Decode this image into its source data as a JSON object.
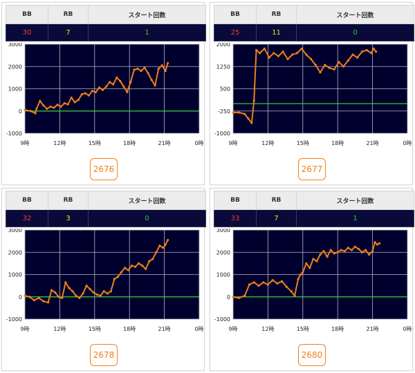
{
  "headers": {
    "bb": "BB",
    "rb": "RB",
    "start": "スタート回数"
  },
  "colors": {
    "bb": "#ff3333",
    "rb": "#e8e800",
    "start": "#33cc33",
    "plot_bg": "#00002e",
    "line": "#f07f1a",
    "zero": "#33cc33",
    "button": "#f07f1a"
  },
  "x_ticks": [
    "9時",
    "12時",
    "15時",
    "18時",
    "21時",
    "0時"
  ],
  "cards": [
    {
      "bb": "30",
      "rb": "7",
      "start": "1",
      "machine": "2676",
      "chart_data": {
        "type": "line",
        "xlim": [
          9,
          24
        ],
        "ylim": [
          -1000,
          3000
        ],
        "y_ticks": [
          "3000",
          "2000",
          "1000",
          "0",
          "-1000"
        ],
        "y_tick_values": [
          3000,
          2000,
          1000,
          0,
          -1000
        ],
        "x": [
          9.0,
          9.5,
          9.9,
          10.0,
          10.3,
          10.6,
          10.9,
          11.2,
          11.5,
          11.8,
          12.1,
          12.4,
          12.7,
          13.0,
          13.3,
          13.6,
          13.9,
          14.2,
          14.5,
          14.8,
          15.1,
          15.4,
          15.7,
          16.0,
          16.3,
          16.6,
          16.9,
          17.2,
          17.5,
          17.8,
          18.1,
          18.4,
          18.7,
          19.0,
          19.3,
          19.6,
          19.9,
          20.2,
          20.5,
          20.8,
          21.1,
          21.3
        ],
        "y": [
          50,
          0,
          -100,
          100,
          450,
          250,
          100,
          200,
          150,
          280,
          200,
          350,
          300,
          600,
          400,
          500,
          750,
          800,
          700,
          900,
          850,
          1050,
          950,
          1100,
          1300,
          1200,
          1500,
          1350,
          1100,
          850,
          1300,
          1850,
          1900,
          1800,
          1950,
          1700,
          1400,
          1150,
          1900,
          2050,
          1800,
          2150
        ]
      }
    },
    {
      "bb": "25",
      "rb": "11",
      "start": "0",
      "machine": "2677",
      "chart_data": {
        "type": "line",
        "xlim": [
          9,
          24
        ],
        "ylim": [
          -1000,
          2000
        ],
        "y_ticks": [
          "2000",
          "1250",
          "500",
          "-250",
          "-1000"
        ],
        "y_tick_values": [
          2000,
          1250,
          500,
          -250,
          -1000
        ],
        "x": [
          9.0,
          9.5,
          10.0,
          10.3,
          10.6,
          10.8,
          11.0,
          11.3,
          11.7,
          12.1,
          12.5,
          12.9,
          13.3,
          13.7,
          14.1,
          14.5,
          14.9,
          15.3,
          15.7,
          16.1,
          16.5,
          16.9,
          17.3,
          17.7,
          18.1,
          18.5,
          18.9,
          19.3,
          19.7,
          20.1,
          20.5,
          20.9,
          21.1,
          21.3
        ],
        "y": [
          -300,
          -300,
          -350,
          -500,
          -650,
          100,
          1800,
          1700,
          1850,
          1550,
          1700,
          1600,
          1750,
          1500,
          1650,
          1700,
          1850,
          1650,
          1500,
          1300,
          1050,
          1300,
          1200,
          1150,
          1400,
          1250,
          1450,
          1650,
          1550,
          1750,
          1800,
          1700,
          1850,
          1750
        ]
      }
    },
    {
      "bb": "32",
      "rb": "3",
      "start": "0",
      "machine": "2678",
      "chart_data": {
        "type": "line",
        "xlim": [
          9,
          24
        ],
        "ylim": [
          -1000,
          3000
        ],
        "y_ticks": [
          "3000",
          "2000",
          "1000",
          "0",
          "-1000"
        ],
        "y_tick_values": [
          3000,
          2000,
          1000,
          0,
          -1000
        ],
        "x": [
          9.0,
          9.4,
          9.8,
          10.2,
          10.6,
          11.0,
          11.3,
          11.6,
          11.9,
          12.2,
          12.5,
          12.8,
          13.1,
          13.4,
          13.7,
          14.0,
          14.3,
          14.6,
          14.9,
          15.2,
          15.5,
          15.8,
          16.1,
          16.4,
          16.7,
          17.0,
          17.3,
          17.6,
          17.9,
          18.2,
          18.5,
          18.8,
          19.1,
          19.4,
          19.7,
          20.0,
          20.3,
          20.6,
          20.9,
          21.1,
          21.3
        ],
        "y": [
          50,
          0,
          -150,
          -50,
          -200,
          -250,
          300,
          200,
          0,
          -50,
          650,
          400,
          250,
          50,
          -50,
          150,
          500,
          350,
          200,
          100,
          50,
          250,
          150,
          250,
          800,
          900,
          1100,
          1300,
          1200,
          1400,
          1350,
          1500,
          1400,
          1250,
          1600,
          1700,
          2000,
          2300,
          2200,
          2350,
          2550
        ]
      }
    },
    {
      "bb": "33",
      "rb": "7",
      "start": "1",
      "machine": "2680",
      "chart_data": {
        "type": "line",
        "xlim": [
          9,
          24
        ],
        "ylim": [
          -1000,
          3000
        ],
        "y_ticks": [
          "3000",
          "2000",
          "1000",
          "0",
          "-1000"
        ],
        "y_tick_values": [
          3000,
          2000,
          1000,
          0,
          -1000
        ],
        "x": [
          9.0,
          9.5,
          10.0,
          10.4,
          10.8,
          11.2,
          11.6,
          12.0,
          12.4,
          12.8,
          13.2,
          13.6,
          14.0,
          14.3,
          14.6,
          14.8,
          15.0,
          15.3,
          15.6,
          15.9,
          16.2,
          16.5,
          16.8,
          17.1,
          17.4,
          17.7,
          18.0,
          18.3,
          18.6,
          18.9,
          19.2,
          19.5,
          19.8,
          20.1,
          20.4,
          20.7,
          21.0,
          21.2,
          21.4,
          21.6
        ],
        "y": [
          0,
          -50,
          50,
          550,
          650,
          500,
          650,
          550,
          750,
          600,
          700,
          450,
          250,
          50,
          800,
          1000,
          1100,
          1500,
          1300,
          1700,
          1600,
          1900,
          2050,
          1800,
          2100,
          1950,
          2000,
          2100,
          2050,
          2200,
          2100,
          2250,
          2150,
          2000,
          2100,
          1900,
          2050,
          2450,
          2350,
          2400
        ]
      }
    }
  ]
}
